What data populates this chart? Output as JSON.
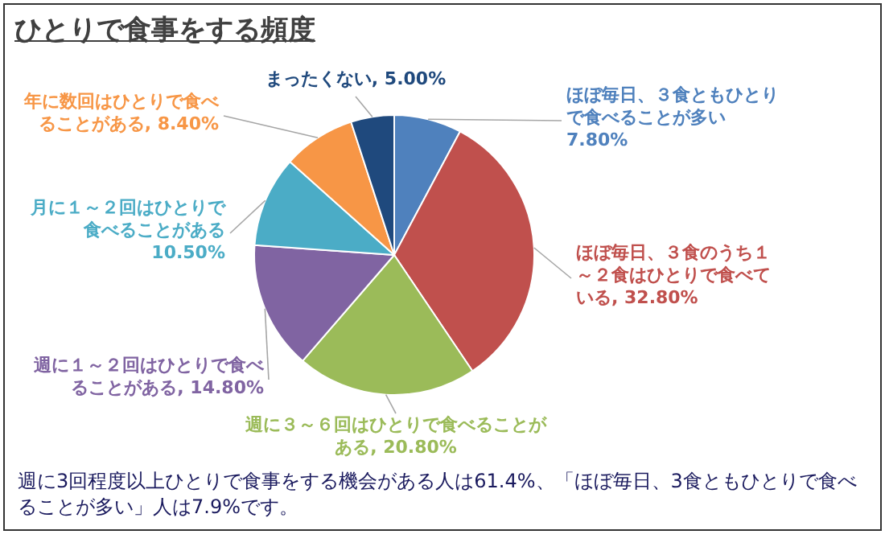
{
  "chart_data": {
    "type": "pie",
    "title": "ひとりで食事をする頻度",
    "categories": [
      "ほぼ毎日、３食ともひとりで食べることが多い",
      "ほぼ毎日、３食のうち１～２食はひとりで食べている",
      "週に３～６回はひとりで食べることがある",
      "週に１～２回はひとりで食べることがある",
      "月に１～２回はひとりで食べることがある",
      "年に数回はひとりで食べることがある",
      "まったくない"
    ],
    "values": [
      7.8,
      32.8,
      20.8,
      14.8,
      10.5,
      8.4,
      5.0
    ],
    "value_labels": [
      "7.80%",
      "32.80%",
      "20.80%",
      "14.80%",
      "10.50%",
      "8.40%",
      "5.00%"
    ],
    "colors": [
      "#4f81bd",
      "#c0504d",
      "#9bbb59",
      "#8064a2",
      "#4bacc6",
      "#f79646",
      "#1f497d"
    ],
    "legend": false,
    "annotations": [
      "週に3回程度以上ひとりで食事をする機会がある人は61.4%、「ほぼ毎日、3食ともひとりで食べることが多い」人は7.9%です。"
    ]
  }
}
